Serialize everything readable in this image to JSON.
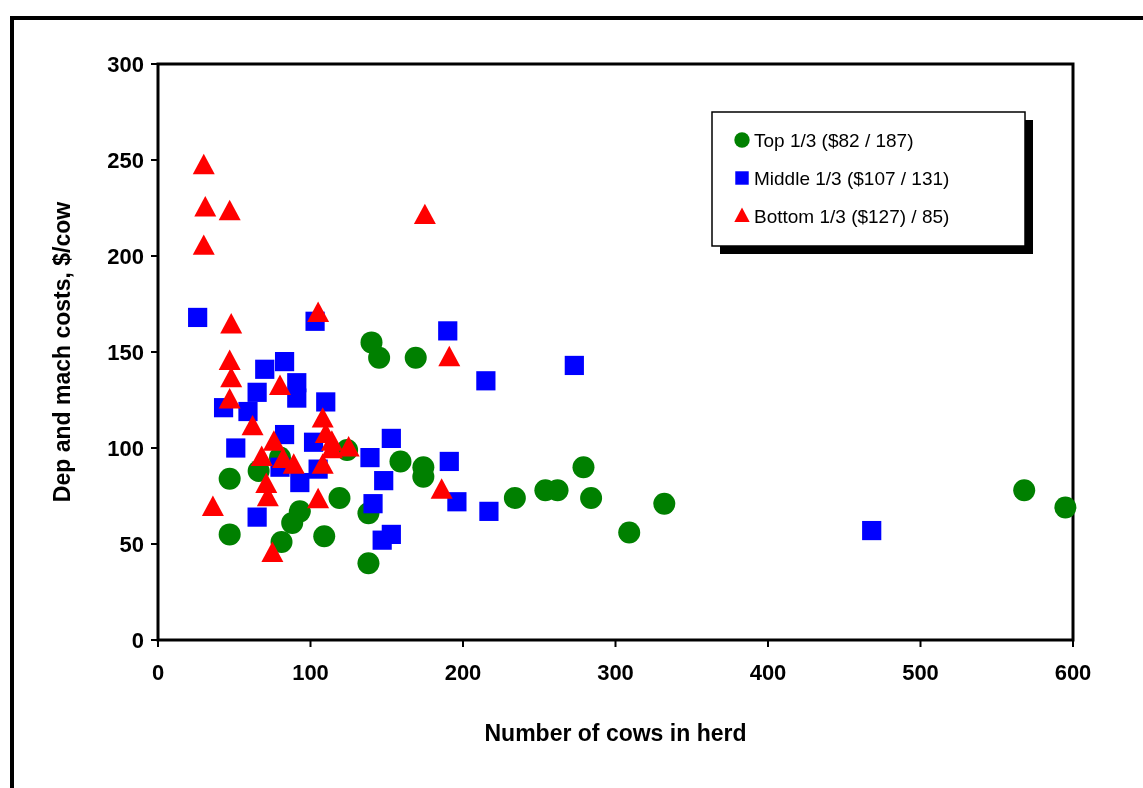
{
  "chart_data": {
    "type": "scatter",
    "xlabel": "Number of cows in herd",
    "ylabel": "Dep and mach costs, $/cow",
    "xlim": [
      0,
      600
    ],
    "ylim": [
      0,
      300
    ],
    "xticks": [
      0,
      100,
      200,
      300,
      400,
      500,
      600
    ],
    "yticks": [
      0,
      50,
      100,
      150,
      200,
      250,
      300
    ],
    "legend": "top right",
    "series": [
      {
        "name": "Top 1/3 ($82 / 187)",
        "color": "#008000",
        "marker": "circle",
        "x": [
          47,
          47,
          66,
          80,
          81,
          88,
          93,
          109,
          119,
          124,
          140,
          145,
          169,
          138,
          138,
          159,
          174,
          174,
          234,
          254,
          262,
          279,
          284,
          309,
          332,
          568,
          595
        ],
        "values": [
          84,
          55,
          88,
          95,
          51,
          61,
          67,
          54,
          74,
          99,
          155,
          147,
          147,
          66,
          40,
          93,
          90,
          85,
          74,
          78,
          78,
          90,
          74,
          56,
          71,
          78,
          69
        ]
      },
      {
        "name": "Middle 1/3 ($107 / 131)",
        "color": "#0000ff",
        "marker": "square",
        "x": [
          26,
          103,
          83,
          70,
          91,
          65,
          91,
          110,
          43,
          59,
          83,
          102,
          51,
          80,
          105,
          93,
          65,
          190,
          215,
          153,
          139,
          191,
          148,
          141,
          196,
          217,
          153,
          147,
          273,
          468
        ],
        "values": [
          168,
          166,
          145,
          141,
          134,
          129,
          126,
          124,
          121,
          119,
          107,
          103,
          100,
          90,
          89,
          82,
          64,
          161,
          135,
          105,
          95,
          93,
          83,
          71,
          72,
          67,
          55,
          52,
          143,
          57
        ]
      },
      {
        "name": "Bottom 1/3 ($127) / 85)",
        "color": "#ff0000",
        "marker": "triangle",
        "x": [
          30,
          31,
          47,
          30,
          105,
          48,
          175,
          47,
          48,
          47,
          80,
          62,
          108,
          110,
          114,
          114,
          125,
          76,
          68,
          82,
          89,
          108,
          71,
          72,
          36,
          105,
          75,
          191,
          186
        ],
        "values": [
          247,
          225,
          223,
          205,
          170,
          164,
          221,
          145,
          136,
          125,
          132,
          111,
          115,
          107,
          103,
          99,
          100,
          103,
          95,
          94,
          91,
          91,
          81,
          74,
          69,
          73,
          45,
          147,
          78
        ]
      }
    ]
  }
}
